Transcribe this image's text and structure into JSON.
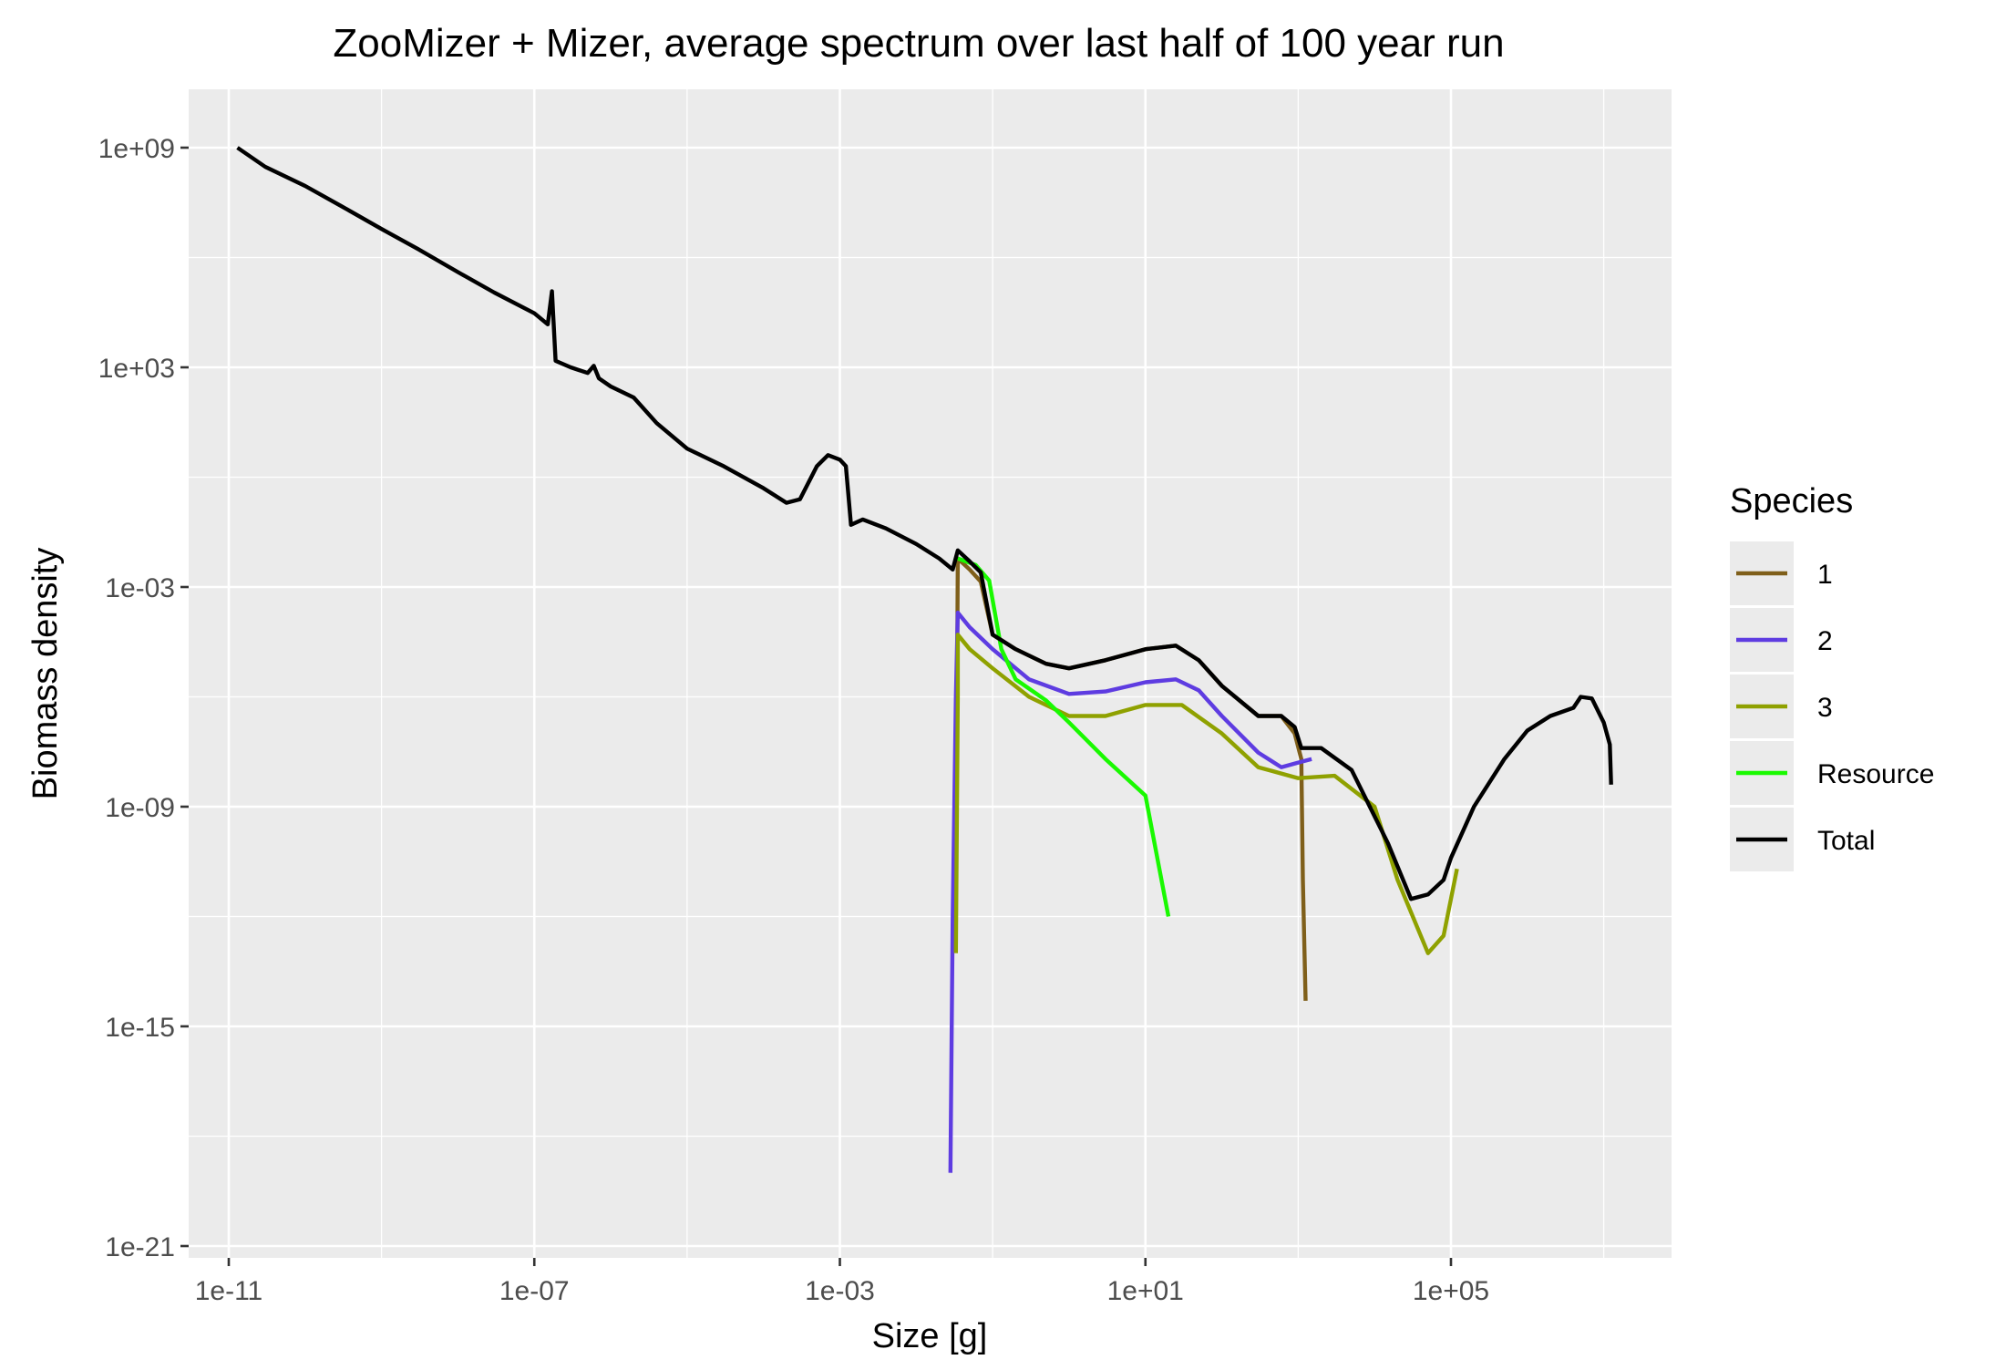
{
  "chart_data": {
    "type": "line",
    "title": "ZooMizer + Mizer, average spectrum over last half of 100 year run",
    "xlabel": "Size [g]",
    "ylabel": "Biomass density",
    "x_scale": "log10",
    "y_scale": "log10",
    "xlim": [
      1e-12,
      10000000.0
    ],
    "ylim": [
      1e-21,
      10000000000.0
    ],
    "x_ticks": [
      1e-11,
      1e-07,
      0.001,
      10,
      100000.0
    ],
    "x_tick_labels": [
      "1e-11",
      "1e-07",
      "1e-03",
      "1e+01",
      "1e+05"
    ],
    "y_ticks": [
      1000000000.0,
      1000.0,
      0.001,
      1e-09,
      1e-15,
      1e-21
    ],
    "y_tick_labels": [
      "1e+09",
      "1e+03",
      "1e-03",
      "1e-09",
      "1e-15",
      "1e-21"
    ],
    "grid": true,
    "legend": {
      "title": "Species",
      "position": "right"
    },
    "series": [
      {
        "name": "1",
        "color": "#7f5f1a",
        "points": [
          [
            0.033,
            1e-11
          ],
          [
            0.035,
            0.006
          ],
          [
            0.05,
            0.003
          ],
          [
            0.07,
            0.0014
          ],
          [
            0.1,
            5e-05
          ],
          [
            0.2,
            2e-05
          ],
          [
            0.5,
            8e-06
          ],
          [
            1,
            6e-06
          ],
          [
            3,
            1e-05
          ],
          [
            10,
            2e-05
          ],
          [
            25,
            2.5e-05
          ],
          [
            50,
            1e-05
          ],
          [
            100,
            2e-06
          ],
          [
            300,
            3e-07
          ],
          [
            600,
            3e-07
          ],
          [
            900,
            1e-07
          ],
          [
            1100,
            2e-08
          ],
          [
            1150,
            1e-11
          ],
          [
            1250,
            5e-15
          ]
        ]
      },
      {
        "name": "2",
        "color": "#5e3ce1",
        "points": [
          [
            0.028,
            1e-19
          ],
          [
            0.03,
            1e-12
          ],
          [
            0.033,
            1e-06
          ],
          [
            0.035,
            0.0002
          ],
          [
            0.05,
            8e-05
          ],
          [
            0.1,
            2e-05
          ],
          [
            0.3,
            3e-06
          ],
          [
            1,
            1.2e-06
          ],
          [
            3,
            1.4e-06
          ],
          [
            10,
            2.5e-06
          ],
          [
            25,
            3e-06
          ],
          [
            50,
            1.5e-06
          ],
          [
            100,
            3e-07
          ],
          [
            300,
            3e-08
          ],
          [
            600,
            1.2e-08
          ],
          [
            1000,
            1.6e-08
          ],
          [
            1500,
            2e-08
          ]
        ]
      },
      {
        "name": "3",
        "color": "#8fa100",
        "points": [
          [
            0.033,
            1e-13
          ],
          [
            0.035,
            1e-06
          ],
          [
            0.035,
            5e-05
          ],
          [
            0.05,
            2e-05
          ],
          [
            0.1,
            6e-06
          ],
          [
            0.3,
            1e-06
          ],
          [
            1,
            3e-07
          ],
          [
            3,
            3e-07
          ],
          [
            10,
            6e-07
          ],
          [
            30,
            6e-07
          ],
          [
            100,
            1e-07
          ],
          [
            300,
            1.2e-08
          ],
          [
            1000,
            6e-09
          ],
          [
            3000,
            7e-09
          ],
          [
            10000,
            1e-09
          ],
          [
            20000,
            1e-11
          ],
          [
            50000,
            1e-13
          ],
          [
            80000,
            3e-13
          ],
          [
            120000,
            2e-11
          ]
        ]
      },
      {
        "name": "Resource",
        "color": "#19f900",
        "points": [
          [
            0.035,
            0.006
          ],
          [
            0.06,
            0.004
          ],
          [
            0.09,
            0.0015
          ],
          [
            0.13,
            2e-05
          ],
          [
            0.2,
            3e-06
          ],
          [
            0.5,
            8e-07
          ],
          [
            1,
            2e-07
          ],
          [
            3,
            2e-08
          ],
          [
            10,
            2e-09
          ],
          [
            20,
            1e-12
          ]
        ]
      },
      {
        "name": "Total",
        "color": "#000000",
        "points": [
          [
            1.3e-11,
            1000000000.0
          ],
          [
            3e-11,
            300000000.0
          ],
          [
            1e-10,
            90000000.0
          ],
          [
            3e-10,
            25000000.0
          ],
          [
            1e-09,
            6000000.0
          ],
          [
            3e-09,
            1700000.0
          ],
          [
            1e-08,
            400000.0
          ],
          [
            3e-08,
            110000.0
          ],
          [
            1e-07,
            30000.0
          ],
          [
            1.5e-07,
            15000.0
          ],
          [
            1.7e-07,
            120000.0
          ],
          [
            1.9e-07,
            1500
          ],
          [
            3e-07,
            1000
          ],
          [
            5e-07,
            700
          ],
          [
            6e-07,
            1100
          ],
          [
            7e-07,
            500
          ],
          [
            1e-06,
            300
          ],
          [
            2e-06,
            150
          ],
          [
            4e-06,
            30
          ],
          [
            1e-05,
            6
          ],
          [
            3e-05,
            2
          ],
          [
            0.0001,
            0.5
          ],
          [
            0.0002,
            0.2
          ],
          [
            0.0003,
            0.25
          ],
          [
            0.0005,
            2
          ],
          [
            0.0007,
            4
          ],
          [
            0.001,
            3
          ],
          [
            0.0012,
            2
          ],
          [
            0.0014,
            0.05
          ],
          [
            0.002,
            0.07
          ],
          [
            0.004,
            0.04
          ],
          [
            0.01,
            0.015
          ],
          [
            0.02,
            0.006
          ],
          [
            0.03,
            0.003
          ],
          [
            0.035,
            0.01
          ],
          [
            0.05,
            0.005
          ],
          [
            0.07,
            0.0025
          ],
          [
            0.1,
            5e-05
          ],
          [
            0.2,
            2e-05
          ],
          [
            0.5,
            8e-06
          ],
          [
            1,
            6e-06
          ],
          [
            3,
            1e-05
          ],
          [
            10,
            2e-05
          ],
          [
            25,
            2.5e-05
          ],
          [
            50,
            1e-05
          ],
          [
            100,
            2e-06
          ],
          [
            300,
            3e-07
          ],
          [
            600,
            3e-07
          ],
          [
            900,
            1.5e-07
          ],
          [
            1100,
            4e-08
          ],
          [
            2000,
            4e-08
          ],
          [
            5000,
            1e-08
          ],
          [
            15000,
            1e-10
          ],
          [
            30000,
            3e-12
          ],
          [
            50000,
            4e-12
          ],
          [
            80000,
            1e-11
          ],
          [
            100000.0,
            4e-11
          ],
          [
            200000.0,
            1e-09
          ],
          [
            500000.0,
            2e-08
          ],
          [
            1000000.0,
            1.2e-07
          ],
          [
            2000000.0,
            3e-07
          ],
          [
            4000000.0,
            5e-07
          ],
          [
            5000000.0,
            1e-06
          ],
          [
            7000000.0,
            9e-07
          ],
          [
            10000000.0,
            2e-07
          ],
          [
            12000000.0,
            5e-08
          ],
          [
            12500000.0,
            4e-09
          ]
        ]
      }
    ]
  }
}
